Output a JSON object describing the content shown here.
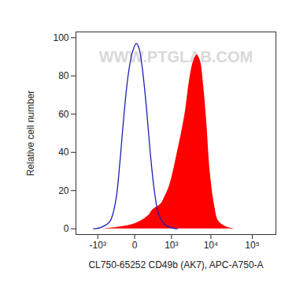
{
  "chart_data": {
    "type": "area",
    "x_label": "CL750-65252 CD49b (AK7), APC-A750-A",
    "y_label": "Relative cell number",
    "annotations": [
      "WWW.PTGLAB.COM"
    ],
    "log": "x",
    "xlim": [
      -3700,
      370000
    ],
    "xticks": [
      {
        "value": -1000,
        "label": "-10³"
      },
      0,
      {
        "value": 1000,
        "label": "10³"
      },
      {
        "value": 10000,
        "label": "10⁴"
      },
      {
        "value": 100000,
        "label": "10⁵"
      }
    ],
    "ylim": [
      -3,
      103
    ],
    "yticks": [
      0,
      20,
      40,
      60,
      80,
      100
    ],
    "series": [
      {
        "type": "area",
        "color": "#ff0000",
        "x": [
          -689,
          -189,
          14,
          174,
          257,
          490,
          652,
          857,
          1113,
          1434,
          1837,
          2343,
          2976,
          3773,
          4550,
          5490,
          6615,
          7950,
          9560,
          12330,
          15430,
          23850,
          37650
        ],
        "values": [
          0,
          1,
          3,
          7,
          10,
          13,
          17,
          22,
          30,
          40,
          50,
          62,
          78,
          88,
          91,
          88,
          75,
          55,
          30,
          12,
          4,
          1,
          0
        ]
      },
      {
        "type": "line",
        "color": "#1f1fb4",
        "x": [
          -1302,
          -767,
          -435,
          -275,
          -189,
          -120,
          -66,
          -22,
          14,
          38,
          76,
          133,
          205,
          295,
          409,
          583,
          857,
          1434
        ],
        "values": [
          0,
          1,
          4,
          15,
          35,
          60,
          80,
          92,
          97,
          95,
          85,
          65,
          40,
          20,
          8,
          3,
          1,
          0
        ]
      }
    ]
  }
}
